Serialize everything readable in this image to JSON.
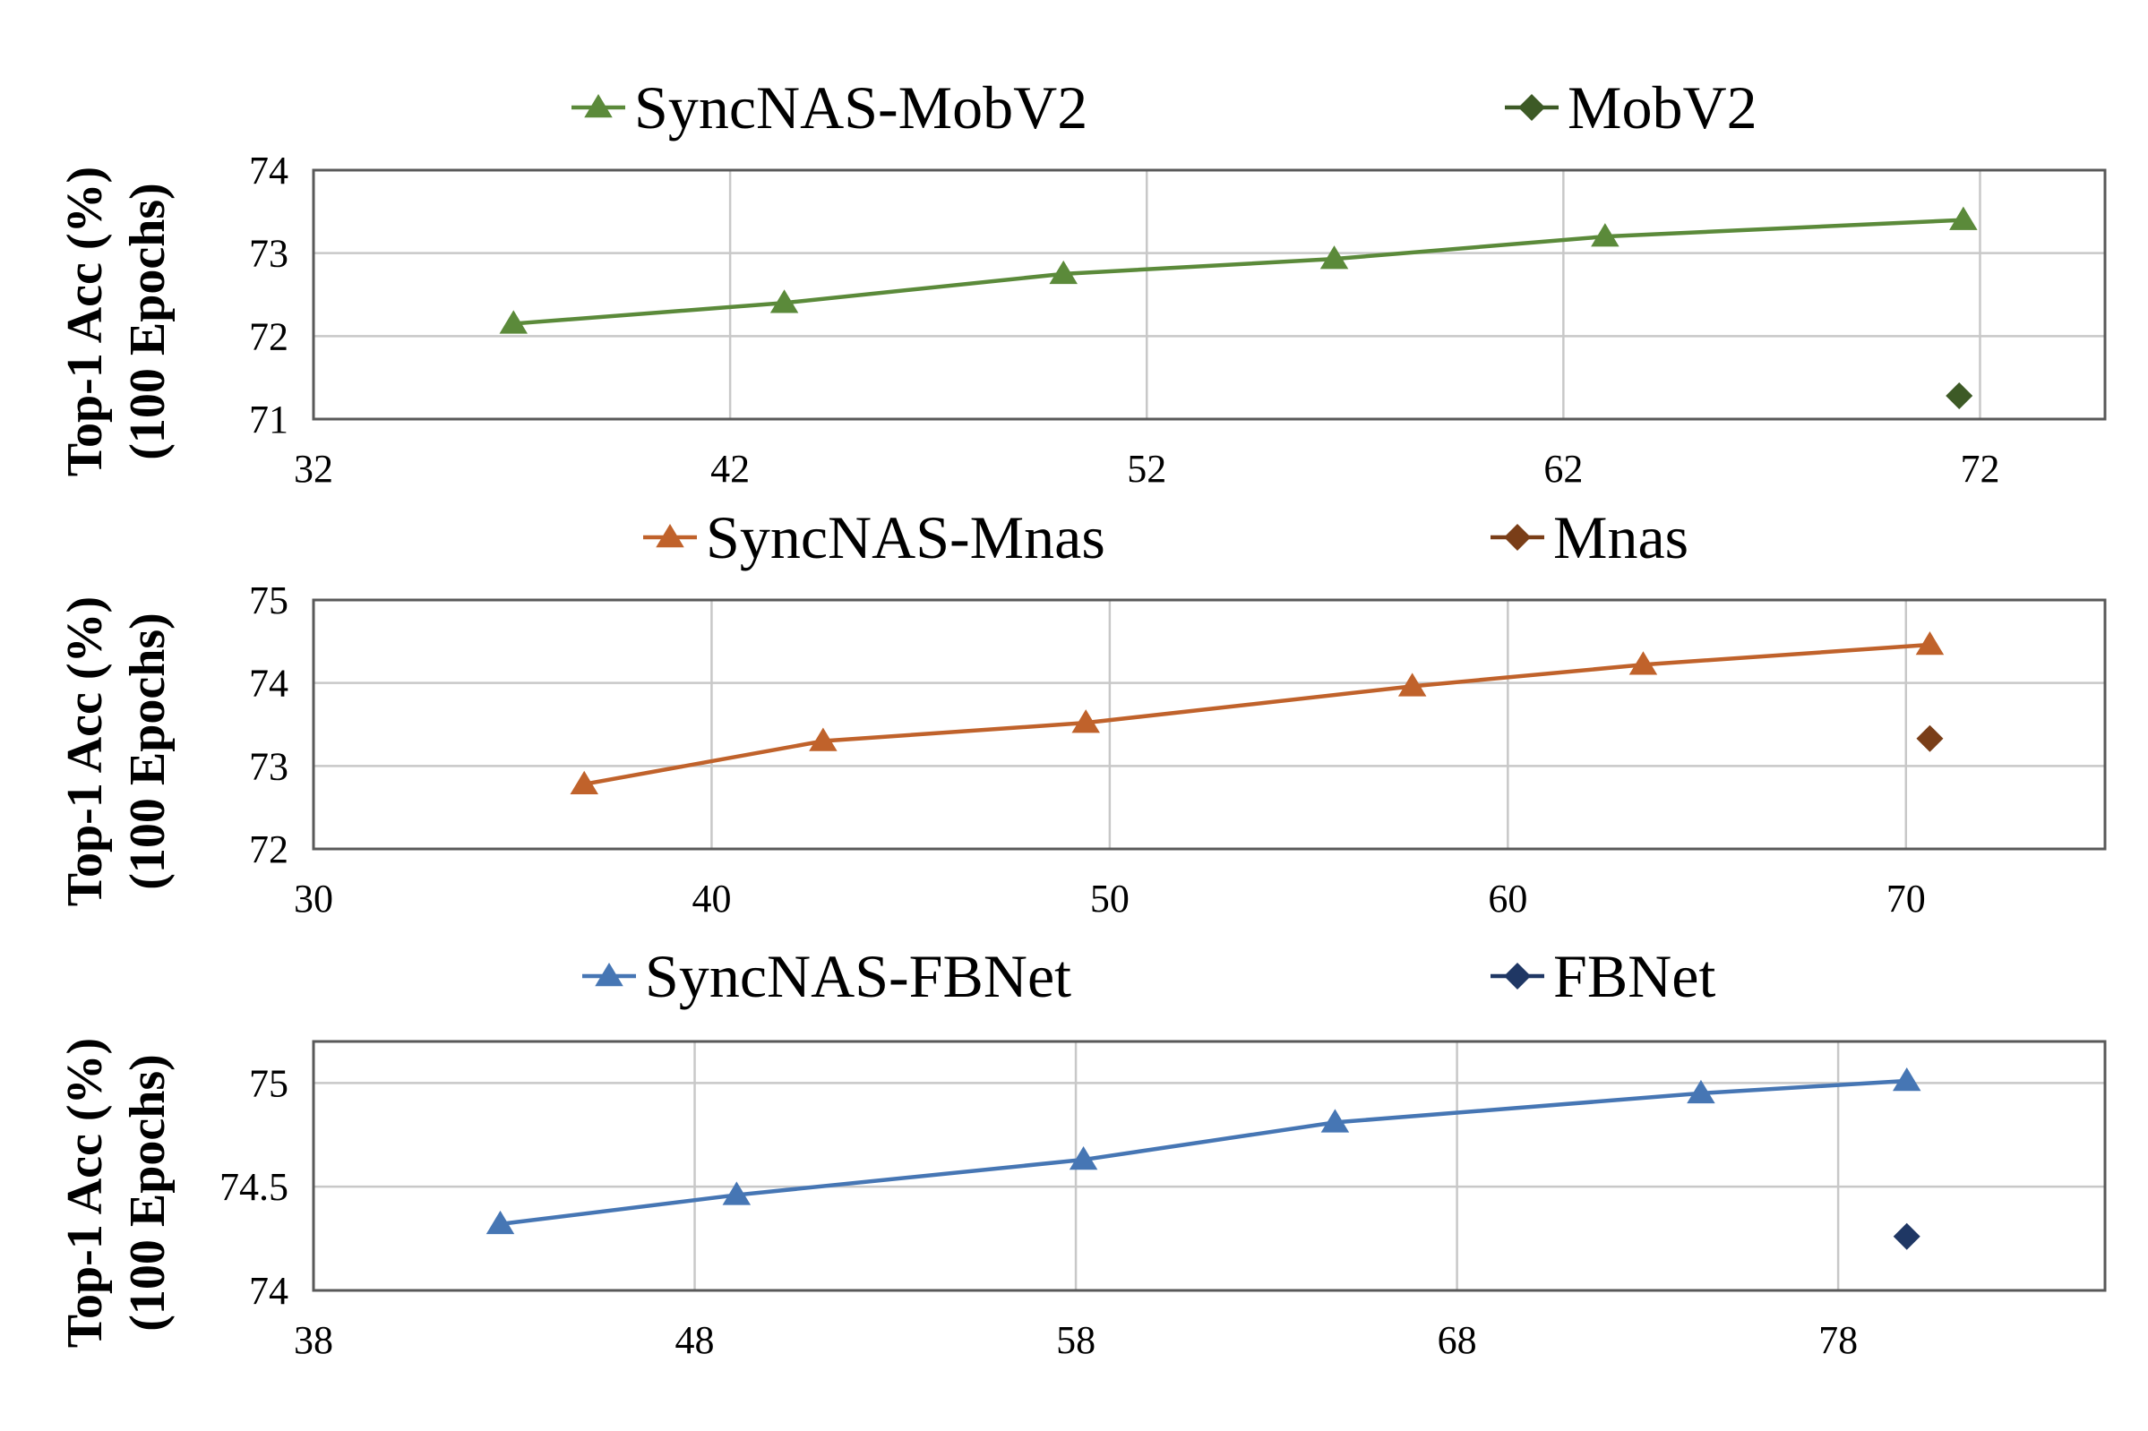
{
  "chart_data": [
    {
      "type": "line",
      "ylabel": [
        "Top-1 Acc (%)",
        "(100 Epochs)"
      ],
      "xlim": [
        32,
        75
      ],
      "xticks": [
        32,
        42,
        52,
        62,
        72
      ],
      "ylim": [
        71,
        74
      ],
      "yticks": [
        71,
        72,
        73,
        74
      ],
      "grid": true,
      "legend": "top",
      "series": [
        {
          "name": "SyncNAS-MobV2",
          "marker": "triangle",
          "line": true,
          "color": "#5b8a3a",
          "x": [
            36.8,
            43.3,
            50.0,
            56.5,
            63.0,
            71.6
          ],
          "y": [
            72.15,
            72.4,
            72.75,
            72.93,
            73.2,
            73.4
          ]
        },
        {
          "name": "MobV2",
          "marker": "diamond",
          "line": false,
          "color": "#3d5a26",
          "x": [
            71.5
          ],
          "y": [
            71.28
          ]
        }
      ]
    },
    {
      "type": "line",
      "ylabel": [
        "Top-1 Acc (%)",
        "(100 Epochs)"
      ],
      "xlim": [
        30,
        75
      ],
      "xticks": [
        30,
        40,
        50,
        60,
        70
      ],
      "ylim": [
        72,
        75
      ],
      "yticks": [
        72,
        73,
        74,
        75
      ],
      "grid": true,
      "legend": "top",
      "series": [
        {
          "name": "SyncNAS-Mnas",
          "marker": "triangle",
          "line": true,
          "color": "#c0622b",
          "x": [
            36.8,
            42.8,
            49.4,
            57.6,
            63.4,
            70.6
          ],
          "y": [
            72.78,
            73.3,
            73.52,
            73.96,
            74.22,
            74.46
          ]
        },
        {
          "name": "Mnas",
          "marker": "diamond",
          "line": false,
          "color": "#7a3e18",
          "x": [
            70.6
          ],
          "y": [
            73.33
          ]
        }
      ]
    },
    {
      "type": "line",
      "ylabel": [
        "Top-1 Acc (%)",
        "(100 Epochs)"
      ],
      "xlim": [
        38,
        85
      ],
      "xticks": [
        38,
        48,
        58,
        68,
        78
      ],
      "ylim": [
        74,
        75.2
      ],
      "yticks": [
        74,
        74.5,
        75
      ],
      "grid": true,
      "legend": "top",
      "series": [
        {
          "name": "SyncNAS-FBNet",
          "marker": "triangle",
          "line": true,
          "color": "#4676b4",
          "x": [
            42.9,
            49.1,
            58.2,
            64.8,
            74.4,
            79.8
          ],
          "y": [
            74.32,
            74.46,
            74.63,
            74.81,
            74.95,
            75.01
          ]
        },
        {
          "name": "FBNet",
          "marker": "diamond",
          "line": false,
          "color": "#1f3764",
          "x": [
            79.8
          ],
          "y": [
            74.26
          ]
        }
      ]
    }
  ]
}
